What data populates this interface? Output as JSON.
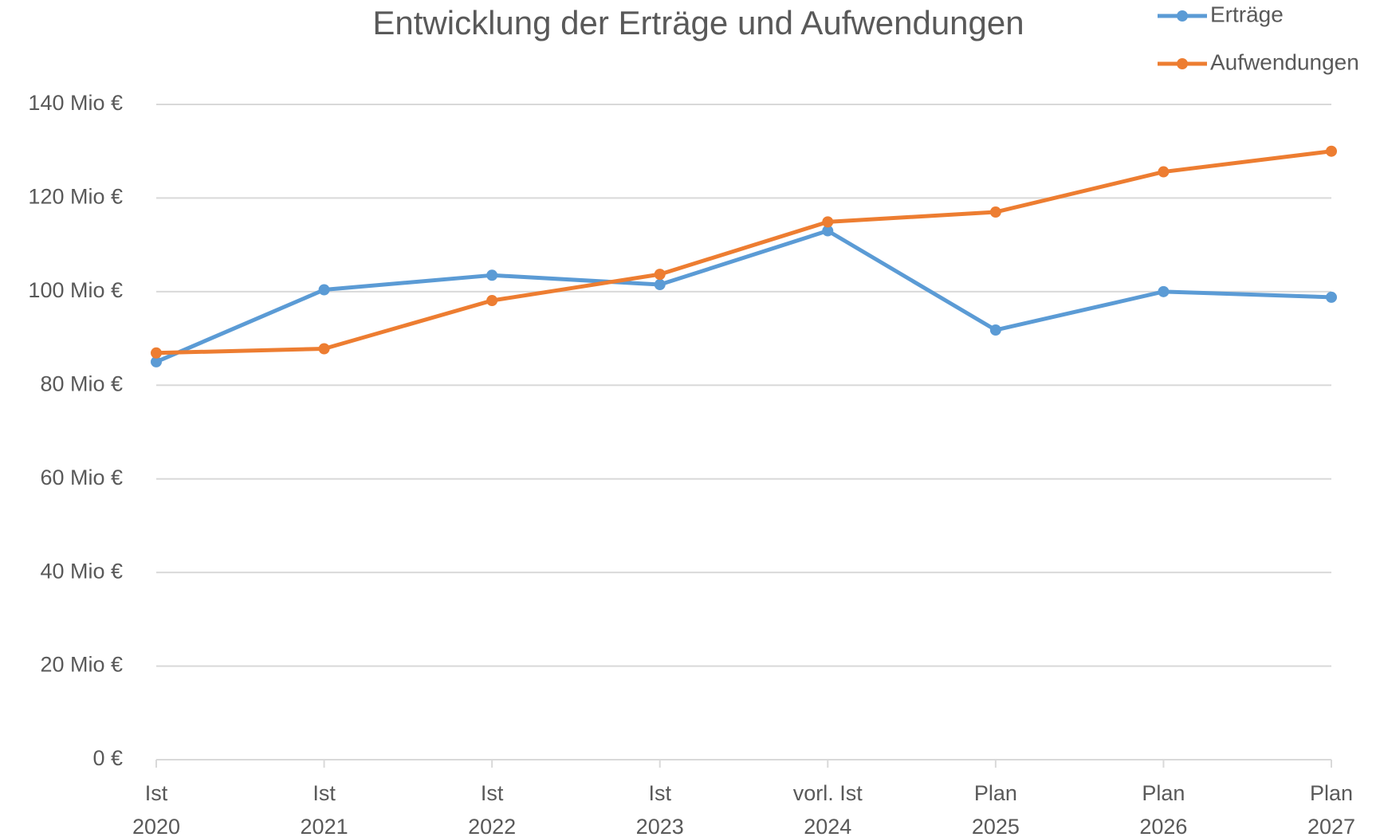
{
  "chart_data": {
    "type": "line",
    "title": "Entwicklung der Erträge und Aufwendungen",
    "categories": [
      "Ist 2020",
      "Ist 2021",
      "Ist 2022",
      "Ist 2023",
      "vorl. Ist 2024",
      "Plan 2025",
      "Plan 2026",
      "Plan 2027"
    ],
    "series": [
      {
        "name": "Erträge",
        "color": "#5b9bd5",
        "values": [
          85,
          100.4,
          103.5,
          101.5,
          113,
          91.8,
          100,
          98.8
        ]
      },
      {
        "name": "Aufwendungen",
        "color": "#ed7d31",
        "values": [
          86.9,
          87.8,
          98.1,
          103.7,
          114.9,
          117,
          125.6,
          130
        ]
      }
    ],
    "ylim": [
      0,
      140
    ],
    "yticks": [
      {
        "value": 0,
        "label": "0 €"
      },
      {
        "value": 20,
        "label": "20 Mio €"
      },
      {
        "value": 40,
        "label": "40 Mio €"
      },
      {
        "value": 60,
        "label": "60 Mio €"
      },
      {
        "value": 80,
        "label": "80 Mio €"
      },
      {
        "value": 100,
        "label": "100 Mio €"
      },
      {
        "value": 120,
        "label": "120 Mio €"
      },
      {
        "value": 140,
        "label": "140 Mio €"
      }
    ],
    "grid": true,
    "legend": "top-right"
  }
}
